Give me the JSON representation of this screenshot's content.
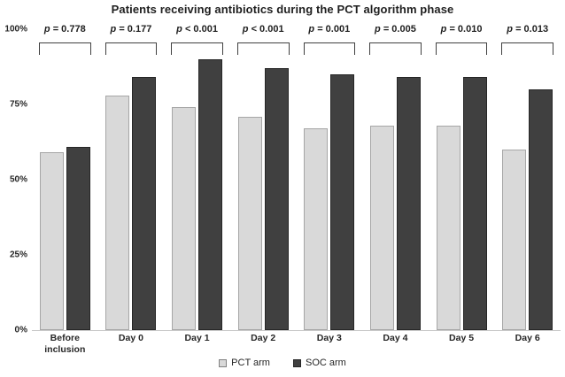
{
  "title": "Patients receiving antibiotics during the PCT algorithm phase",
  "chart_data": {
    "type": "bar",
    "title": "Patients receiving antibiotics during the PCT algorithm phase",
    "categories": [
      "Before inclusion",
      "Day 0",
      "Day 1",
      "Day 2",
      "Day 3",
      "Day 4",
      "Day 5",
      "Day 6"
    ],
    "series": [
      {
        "name": "PCT arm",
        "color": "#d9d9d9",
        "border_color": "#a6a6a6",
        "values": [
          59,
          78,
          74,
          71,
          67,
          68,
          68,
          60
        ]
      },
      {
        "name": "SOC arm",
        "color": "#404040",
        "border_color": "#262626",
        "values": [
          61,
          84,
          90,
          87,
          85,
          84,
          84,
          80
        ]
      }
    ],
    "p_values": [
      "p = 0.778",
      "p = 0.177",
      "p < 0.001",
      "p < 0.001",
      "p = 0.001",
      "p = 0.005",
      "p = 0.010",
      "p = 0.013"
    ],
    "ylabel": "",
    "xlabel": "",
    "ylim": [
      0,
      100
    ],
    "y_ticks": [
      {
        "label": "100%",
        "value": 100
      },
      {
        "label": "75%",
        "value": 75
      },
      {
        "label": "50%",
        "value": 50
      },
      {
        "label": "25%",
        "value": 25
      },
      {
        "label": "0%",
        "value": 0
      }
    ],
    "grid": false,
    "legend_position": "bottom-center",
    "baseline_color": "#c9c9c9",
    "bracket_color": "#404040"
  },
  "legend": {
    "items": [
      {
        "label": "PCT arm",
        "color": "#d9d9d9"
      },
      {
        "label": "SOC arm",
        "color": "#404040"
      }
    ]
  }
}
